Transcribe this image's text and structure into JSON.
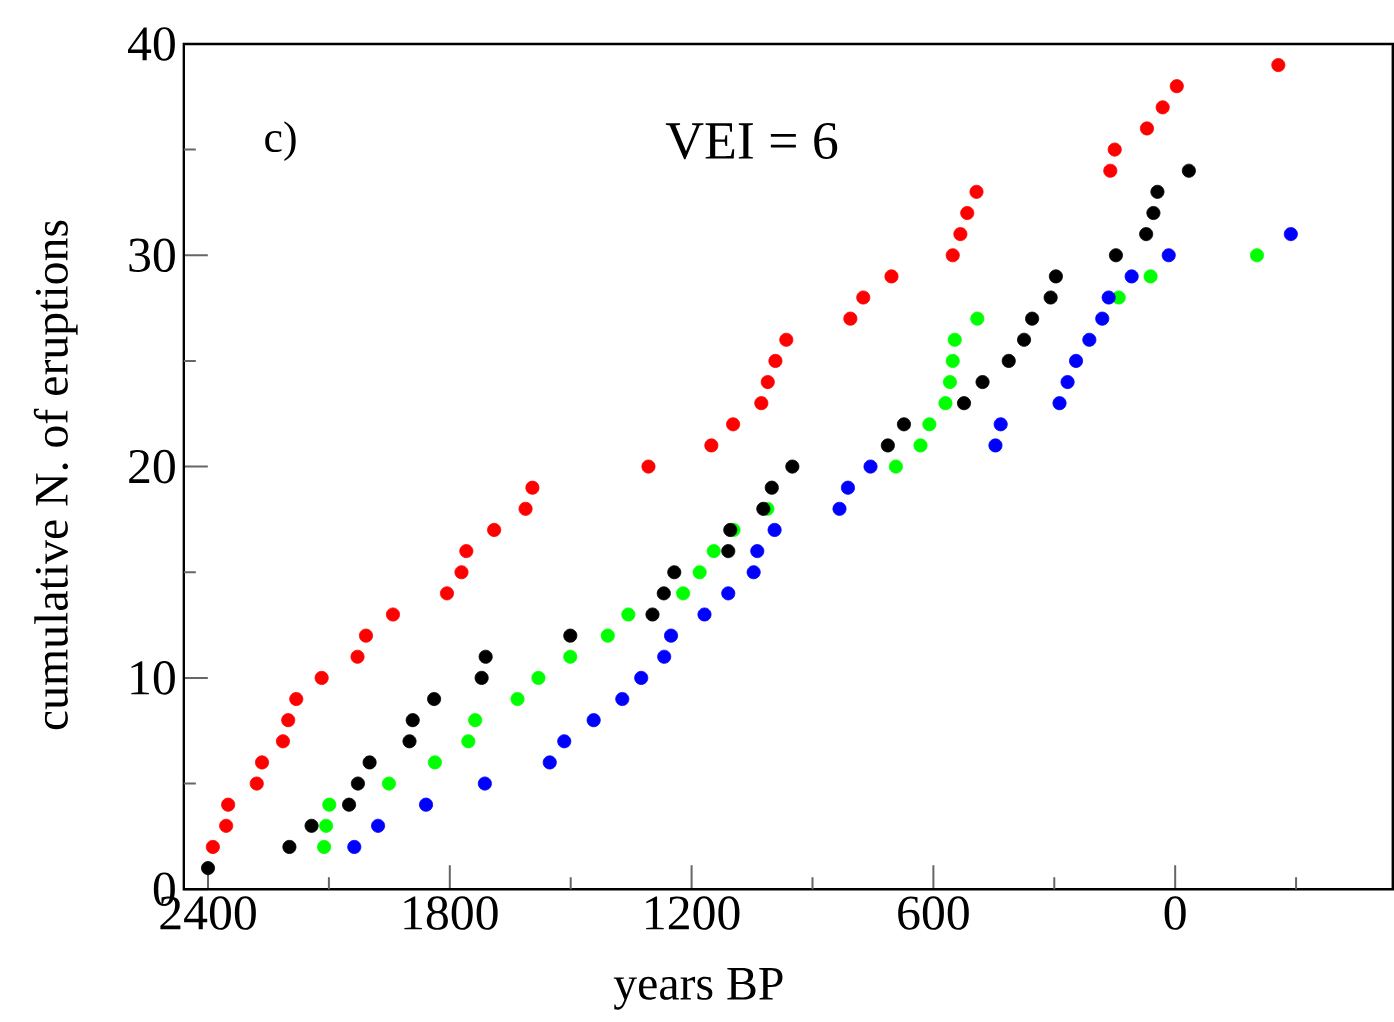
{
  "chart_data": {
    "type": "scatter",
    "xlabel": "years BP",
    "ylabel": "cumulative N. of eruptions",
    "annotations": [
      "c)",
      "VEI = 6"
    ],
    "xlim": [
      2460,
      -540
    ],
    "ylim": [
      0,
      40
    ],
    "xticks": [
      2400,
      {
        "value": 2100,
        "label": null
      },
      1800,
      {
        "value": 1500,
        "label": null
      },
      1200,
      {
        "value": 900,
        "label": null
      },
      600,
      {
        "value": 300,
        "label": null
      },
      0,
      {
        "value": -300,
        "label": null
      }
    ],
    "yticks": [
      0,
      {
        "value": 5,
        "label": null
      },
      10,
      {
        "value": 15,
        "label": null
      },
      20,
      {
        "value": 25,
        "label": null
      },
      30,
      {
        "value": 35,
        "label": null
      },
      40
    ],
    "marker": "circle",
    "grid": false,
    "series": [
      {
        "color": "#00ff00",
        "x": [
          2112,
          2107,
          2099,
          1951,
          1837,
          1754,
          1737,
          1632,
          1580,
          1501,
          1408,
          1357,
          1221,
          1180,
          1145,
          1096,
          1012,
          1000,
          693,
          632,
          610,
          570,
          559,
          552,
          547,
          491,
          140,
          61,
          -203
        ],
        "values": [
          2,
          3,
          4,
          5,
          6,
          7,
          8,
          9,
          10,
          11,
          12,
          13,
          14,
          15,
          16,
          17,
          18,
          null,
          20,
          21,
          22,
          23,
          24,
          25,
          26,
          27,
          28,
          29,
          30
        ]
      },
      {
        "color": "#ff0000",
        "x": [
          2388,
          2355,
          2350,
          2279,
          2266,
          2214,
          2201,
          2181,
          2118,
          2029,
          2008,
          1941,
          1807,
          1771,
          1759,
          1690,
          1612,
          1595,
          1307,
          1151,
          1097,
          1027,
          1011,
          992,
          965,
          806,
          774,
          704,
          552,
          533,
          516,
          493,
          161,
          150,
          70,
          31,
          -4,
          -256
        ],
        "values": [
          2,
          3,
          4,
          5,
          6,
          7,
          8,
          9,
          10,
          11,
          12,
          13,
          14,
          15,
          16,
          17,
          18,
          19,
          20,
          21,
          22,
          23,
          24,
          25,
          26,
          27,
          28,
          29,
          30,
          31,
          32,
          33,
          34,
          35,
          36,
          37,
          38,
          39
        ]
      },
      {
        "color": "#000000",
        "x": [
          2400,
          2198,
          2143,
          2050,
          2028,
          1999,
          1900,
          1892,
          1839,
          1721,
          1711,
          1501,
          1297,
          1269,
          1243,
          1109,
          1104,
          1022,
          1001,
          950,
          713,
          673,
          524,
          478,
          413,
          375,
          355,
          309,
          296,
          147,
          72,
          54,
          44,
          -34
        ],
        "values": [
          1,
          2,
          3,
          4,
          5,
          6,
          7,
          8,
          9,
          10,
          11,
          12,
          13,
          14,
          15,
          16,
          17,
          18,
          19,
          20,
          21,
          22,
          23,
          24,
          25,
          26,
          27,
          28,
          29,
          30,
          31,
          32,
          33,
          34
        ]
      },
      {
        "color": "#0000ff",
        "x": [
          2037,
          1978,
          1859,
          1713,
          1552,
          1516,
          1443,
          1372,
          1325,
          1268,
          1251,
          1168,
          1109,
          1046,
          1037,
          994,
          833,
          812,
          756,
          446,
          433,
          287,
          267,
          246,
          213,
          181,
          165,
          108,
          16,
          -287
        ],
        "values": [
          2,
          3,
          4,
          5,
          6,
          7,
          8,
          9,
          10,
          11,
          12,
          13,
          14,
          15,
          16,
          17,
          18,
          19,
          20,
          21,
          22,
          23,
          24,
          25,
          26,
          27,
          28,
          29,
          30,
          31
        ]
      }
    ]
  }
}
